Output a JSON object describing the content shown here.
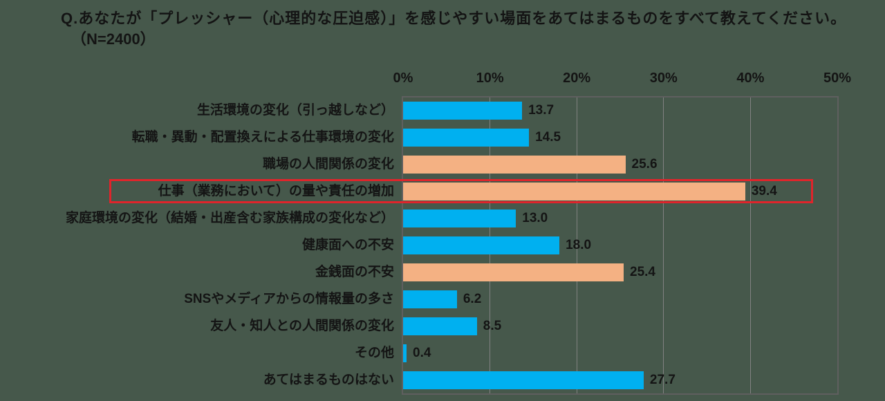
{
  "title": {
    "line1": "Q.あなたが「プレッシャー（心理的な圧迫感）」を感じやすい場面をあてはまるものをすべて教えてください。",
    "line2": "（N=2400）"
  },
  "chart_data": {
    "type": "bar",
    "orientation": "horizontal",
    "title": "プレッシャー（心理的な圧迫感）を感じやすい場面",
    "sample_size": "N=2400",
    "x_axis": {
      "ticks": [
        0,
        10,
        20,
        30,
        40,
        50
      ],
      "tick_labels": [
        "0%",
        "10%",
        "20%",
        "30%",
        "40%",
        "50%"
      ],
      "max": 50,
      "unit": "%"
    },
    "categories": [
      "生活環境の変化（引っ越しなど）",
      "転職・異動・配置換えによる仕事環境の変化",
      "職場の人間関係の変化",
      "仕事（業務において）の量や責任の増加",
      "家庭環境の変化（結婚・出産含む家族構成の変化など）",
      "健康面への不安",
      "金銭面の不安",
      "SNSやメディアからの情報量の多さ",
      "友人・知人との人間関係の変化",
      "その他",
      "あてはまるものはない"
    ],
    "values": [
      13.7,
      14.5,
      25.6,
      39.4,
      13.0,
      18.0,
      25.4,
      6.2,
      8.5,
      0.4,
      27.7
    ],
    "bar_colors": [
      "#00b0f0",
      "#00b0f0",
      "#f4b183",
      "#f4b183",
      "#00b0f0",
      "#00b0f0",
      "#f4b183",
      "#00b0f0",
      "#00b0f0",
      "#00b0f0",
      "#00b0f0"
    ],
    "highlight_index": 3,
    "highlight_color": "#e0242b",
    "grid": true,
    "legend": false
  },
  "colors": {
    "background": "#46584b",
    "text": "#141414",
    "gridline": "#828282",
    "plot_border": "#5f5f5f",
    "bar_cyan": "#00b0f0",
    "bar_orange": "#f4b183",
    "highlight": "#e0242b"
  }
}
